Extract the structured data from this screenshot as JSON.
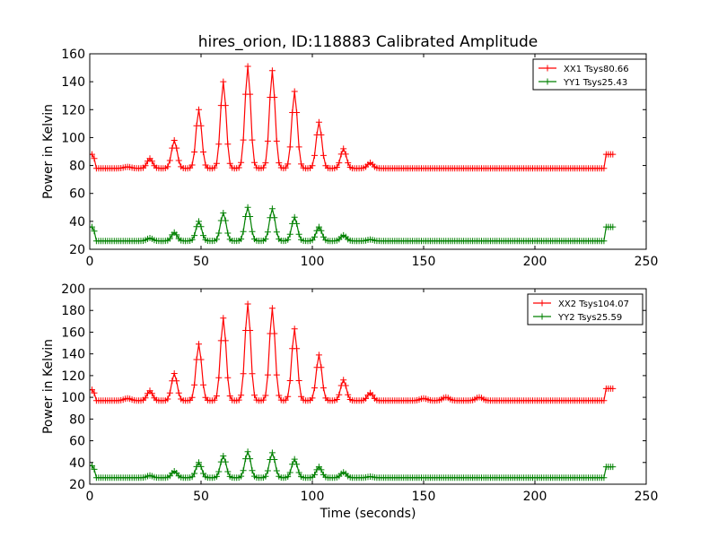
{
  "title": "hires_orion, ID:118883 Calibrated Amplitude",
  "chart_data": [
    {
      "type": "line",
      "ylabel": "Power in Kelvin",
      "xlabel": "",
      "xlim": [
        0,
        250
      ],
      "ylim": [
        20,
        160
      ],
      "xticks": [
        0,
        50,
        100,
        150,
        200,
        250
      ],
      "yticks": [
        20,
        40,
        60,
        80,
        100,
        120,
        140,
        160
      ],
      "grid": false,
      "legend_position": "top-right",
      "marker": "+",
      "peaks_t": [
        2,
        27,
        38,
        49,
        60,
        71,
        82,
        92,
        103,
        114,
        126,
        235
      ],
      "series": [
        {
          "name": "XX1 Tsys80.66",
          "color": "#ff0000",
          "baseline": 78,
          "peaks": [
            88,
            85,
            98,
            120,
            140,
            151,
            148,
            133,
            111,
            92,
            82,
            88
          ],
          "bumps": [
            [
              17,
              79
            ]
          ]
        },
        {
          "name": "YY1 Tsys25.43",
          "color": "#008000",
          "baseline": 26,
          "peaks": [
            36,
            28,
            32,
            40,
            46,
            50,
            49,
            43,
            36,
            30,
            27,
            36
          ],
          "bumps": []
        }
      ]
    },
    {
      "type": "line",
      "ylabel": "Power in Kelvin",
      "xlabel": "Time (seconds)",
      "xlim": [
        0,
        250
      ],
      "ylim": [
        20,
        200
      ],
      "xticks": [
        0,
        50,
        100,
        150,
        200,
        250
      ],
      "yticks": [
        20,
        40,
        60,
        80,
        100,
        120,
        140,
        160,
        180,
        200
      ],
      "grid": false,
      "legend_position": "top-right",
      "marker": "+",
      "peaks_t": [
        2,
        27,
        38,
        49,
        60,
        71,
        82,
        92,
        103,
        114,
        126,
        235
      ],
      "series": [
        {
          "name": "XX2 Tsys104.07",
          "color": "#ff0000",
          "baseline": 97,
          "peaks": [
            107,
            106,
            122,
            149,
            173,
            186,
            182,
            163,
            139,
            116,
            104,
            108
          ],
          "bumps": [
            [
              17,
              99
            ],
            [
              150,
              99
            ],
            [
              160,
              100
            ],
            [
              175,
              100
            ]
          ]
        },
        {
          "name": "YY2 Tsys25.59",
          "color": "#008000",
          "baseline": 26,
          "peaks": [
            37,
            28,
            32,
            40,
            46,
            50,
            49,
            43,
            36,
            31,
            27,
            36
          ],
          "bumps": []
        }
      ]
    }
  ]
}
